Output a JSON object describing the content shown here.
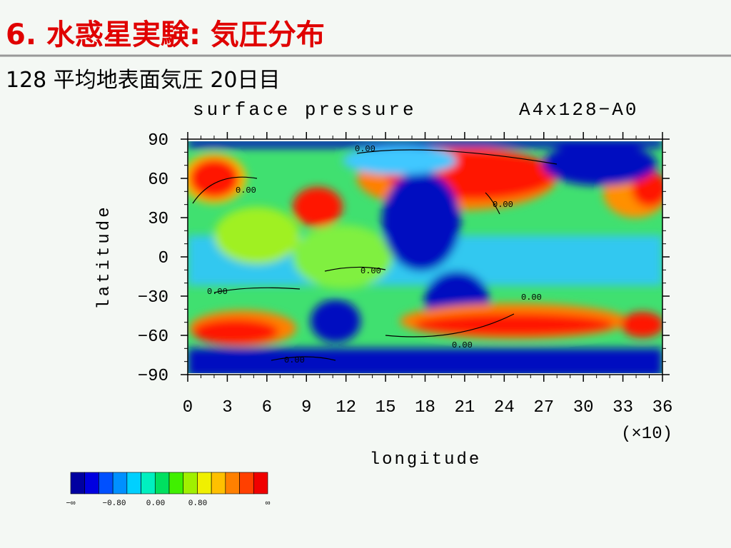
{
  "header": {
    "title": "6. 水惑星実験: 気圧分布",
    "subtitle": "128 平均地表面気圧 20日目"
  },
  "plot": {
    "title": "surface pressure",
    "run_label": "A4x128−A0",
    "xlabel": "longitude",
    "ylabel": "latitude",
    "x_multiplier": "(×10)",
    "xticks": [
      "0",
      "3",
      "6",
      "9",
      "12",
      "15",
      "18",
      "21",
      "24",
      "27",
      "30",
      "33",
      "36"
    ],
    "yticks": [
      "90",
      "60",
      "30",
      "0",
      "−30",
      "−60",
      "−90"
    ],
    "contour_labels": [
      "0.00",
      "0.00",
      "0.00",
      "0.00",
      "0.00",
      "0.00",
      "0.00",
      "0.00"
    ],
    "colorbar_labels": [
      "−∞",
      "−0.80",
      "0.00",
      "0.80",
      "∞"
    ]
  }
}
